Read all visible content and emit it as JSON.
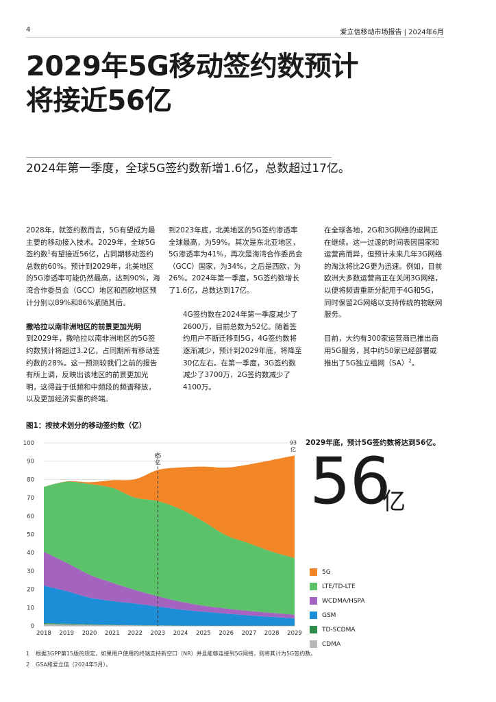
{
  "header": {
    "page_number": "4",
    "running_head": "爱立信移动市场报告 | 2024年6月"
  },
  "title": {
    "line1": "2029年5G移动签约数预计",
    "line2": "将接近56亿"
  },
  "subtitle": "2024年第一季度，全球5G签约数新增1.6亿，总数超过17亿。",
  "body": {
    "col1": {
      "p1_pre": "2028年，就签约数而言，5G有望成为最主要的移动接入技术。2029年，全球5G签约数",
      "p1_sup": "1",
      "p1_post": "有望接近56亿，占同期移动签约总数的60%。预计到2029年，北美地区的5G渗透率可能仍然最高，达到90%，海湾合作委员会（GCC）地区和西欧地区预计分别以89%和86%紧随其后。",
      "heading": "撒哈拉以南非洲地区的前景更加光明",
      "p2": "到2029年，撒哈拉以南非洲地区的5G签约数预计将超过3.2亿，占同期所有移动签约数的28%。这一预测较我们之前的报告有所上调，反映出该地区的前景更加光明，这得益于低频和中频段的频谱释放，以及更加经济实惠的终端。"
    },
    "col2": {
      "p1": "到2023年底，北美地区的5G签约渗透率全球最高，为59%。其次是东北亚地区，5G渗透率为41%，再次是海湾合作委员会（GCC）国家，为34%，之后是西欧，为26%。2024年第一季度，5G签约数增长了1.6亿，总数达到17亿。",
      "p2": "4G签约数在2024年第一季度减少了2600万，目前总数为52亿。随着签约用户不断迁移到5G，4G签约数将逐渐减少，预计到2029年底，将降至30亿左右。在第一季度，3G签约数减少了3700万，2G签约数减少了4100万。"
    },
    "col3": {
      "p1": "在全球各地，2G和3G网络的退网正在继续。这一过渡的时间表因国家和运营商而异，但预计未来几年3G网络的淘汰将比2G更为迅速。例如，目前欧洲大多数运营商正在关闭3G网络，以便将频谱重新分配用于4G和5G，同时保留2G网络以支持传统的物联网服务。",
      "p2_pre": "目前，大约有300家运营商已推出商用5G服务，其中约50家已经部署或推出了5G独立组网（SA）",
      "p2_sup": "2",
      "p2_post": "。"
    }
  },
  "figure": {
    "title": "图1：按技术划分的移动签约数（亿）",
    "callout_text": "2029年底，预计5G签约数将达到56亿。",
    "big_number": "56",
    "big_unit": "亿",
    "marker_label_2023": "85",
    "marker_unit_2023": "亿",
    "end_label_2029": "93",
    "end_unit_2029": "亿",
    "legend": [
      {
        "label": "5G",
        "color": "#F28526"
      },
      {
        "label": "LTE/TD-LTE",
        "color": "#5CC26A"
      },
      {
        "label": "WCDMA/HSPA",
        "color": "#A463BE"
      },
      {
        "label": "GSM",
        "color": "#1C8ED8"
      },
      {
        "label": "TD-SCDMA",
        "color": "#2D8C47"
      },
      {
        "label": "CDMA",
        "color": "#B9B9B9"
      }
    ]
  },
  "chart_data": {
    "type": "area",
    "stacked": true,
    "x": [
      2018,
      2019,
      2020,
      2021,
      2022,
      2023,
      2024,
      2025,
      2026,
      2027,
      2028,
      2029
    ],
    "xlim": [
      2018,
      2029
    ],
    "ylim": [
      0,
      100
    ],
    "yticks": [
      0,
      10,
      20,
      30,
      40,
      50,
      60,
      70,
      80,
      90,
      100
    ],
    "grid": true,
    "marker_year": 2023,
    "series": [
      {
        "name": "CDMA",
        "color": "#B9B9B9",
        "values": [
          1.0,
          0.8,
          0.6,
          0.4,
          0.3,
          0.2,
          0.1,
          0.1,
          0.05,
          0.05,
          0.05,
          0.05
        ]
      },
      {
        "name": "TD-SCDMA",
        "color": "#2D8C47",
        "values": [
          0.5,
          0.4,
          0.3,
          0.2,
          0.1,
          0.1,
          0.05,
          0.05,
          0.05,
          0.05,
          0.05,
          0.05
        ]
      },
      {
        "name": "GSM",
        "color": "#1C8ED8",
        "values": [
          20.5,
          17.8,
          14.6,
          13.0,
          11.8,
          10.3,
          8.8,
          7.6,
          6.6,
          5.6,
          4.8,
          4.0
        ]
      },
      {
        "name": "WCDMA/HSPA",
        "color": "#A463BE",
        "values": [
          18.5,
          15.5,
          12.5,
          10.0,
          7.4,
          5.6,
          4.3,
          3.3,
          2.8,
          2.5,
          2.2,
          2.0
        ]
      },
      {
        "name": "LTE/TD-LTE",
        "color": "#5CC26A",
        "values": [
          35.5,
          44.3,
          49.5,
          51.8,
          50.5,
          52.0,
          50.5,
          46.0,
          40.0,
          37.0,
          33.5,
          31.0
        ]
      },
      {
        "name": "5G",
        "color": "#F28526",
        "values": [
          0.0,
          0.2,
          1.0,
          4.2,
          10.0,
          17.0,
          22.8,
          30.0,
          37.0,
          43.0,
          50.0,
          56.0
        ]
      }
    ]
  },
  "footnotes": [
    {
      "n": "1",
      "text": "根据3GPP第15版的规定，如果用户使用的终端支持新空口（NR）并且能够连接到5G网络，则将其计为5G签约数。"
    },
    {
      "n": "2",
      "text": "GSA和爱立信（2024年5月）。"
    }
  ]
}
